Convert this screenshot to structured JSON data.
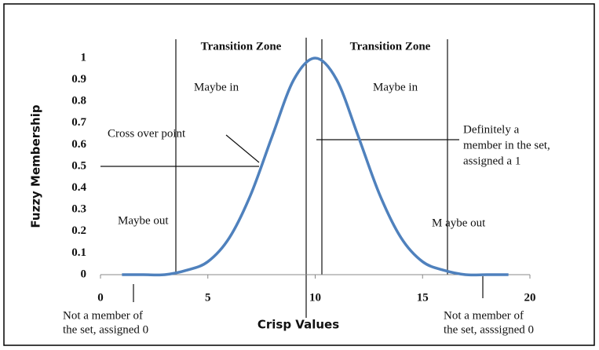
{
  "chart_data": {
    "type": "line",
    "x_label": "Crisp Values",
    "y_label": "Fuzzy Membership",
    "x": [
      1,
      2,
      3,
      4,
      5,
      6,
      7,
      8,
      9,
      10,
      11,
      12,
      13,
      14,
      15,
      16,
      17,
      18,
      19
    ],
    "series": [
      {
        "color": "#4f81bd",
        "values": [
          0,
          0,
          0,
          0.02,
          0.06,
          0.17,
          0.37,
          0.64,
          0.9,
          1,
          0.9,
          0.64,
          0.37,
          0.17,
          0.06,
          0.02,
          0,
          0,
          0
        ]
      }
    ],
    "xlim": [
      0,
      20
    ],
    "xticks": [
      0,
      5,
      10,
      15,
      20
    ],
    "ylim": [
      0,
      1
    ],
    "yticks": [
      0,
      0.1,
      0.2,
      0.3,
      0.4,
      0.5,
      0.6,
      0.7,
      0.8,
      0.9,
      1
    ],
    "grid": false,
    "annotations": [
      [
        "Transition Zone"
      ],
      [
        "Transition Zone"
      ],
      [
        "Maybe in"
      ],
      [
        "Maybe in"
      ],
      [
        "Cross over point"
      ],
      [
        "Definitely a",
        "member in the set,",
        "assigned a 1"
      ],
      [
        "Maybe out"
      ],
      [
        "M aybe out"
      ],
      [
        "Not a member of",
        "the set, assigned 0"
      ],
      [
        "Not a member of",
        "the set, asssigned 0"
      ]
    ]
  }
}
